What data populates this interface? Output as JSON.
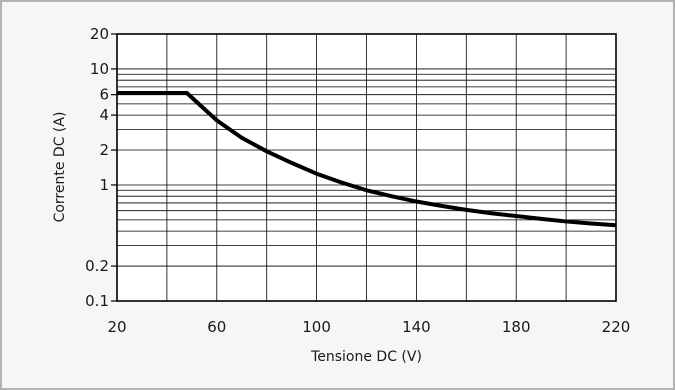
{
  "chart_data": {
    "type": "line",
    "title": "",
    "xlabel": "Tensione DC (V)",
    "ylabel": "Corrente DC (A)",
    "x_scale": "linear",
    "y_scale": "log",
    "xlim": [
      20,
      220
    ],
    "ylim": [
      0.1,
      20
    ],
    "x_ticks": [
      20,
      60,
      100,
      140,
      180,
      220
    ],
    "x_tick_labels": [
      "20",
      "60",
      "100",
      "140",
      "180",
      "220"
    ],
    "y_ticks": [
      0.1,
      0.2,
      1,
      2,
      4,
      6,
      10,
      20
    ],
    "y_tick_labels": [
      "0.1",
      "0.2",
      "1",
      "2",
      "4",
      "6",
      "10",
      "20"
    ],
    "grid": true,
    "line_color": "#000000",
    "series": [
      {
        "x": [
          20,
          48,
          60,
          70,
          80,
          90,
          100,
          110,
          120,
          130,
          140,
          150,
          160,
          170,
          180,
          190,
          200,
          210,
          220
        ],
        "y": [
          6.2,
          6.2,
          3.6,
          2.55,
          1.95,
          1.55,
          1.25,
          1.05,
          0.9,
          0.8,
          0.72,
          0.66,
          0.61,
          0.57,
          0.54,
          0.51,
          0.485,
          0.465,
          0.45
        ]
      }
    ]
  }
}
